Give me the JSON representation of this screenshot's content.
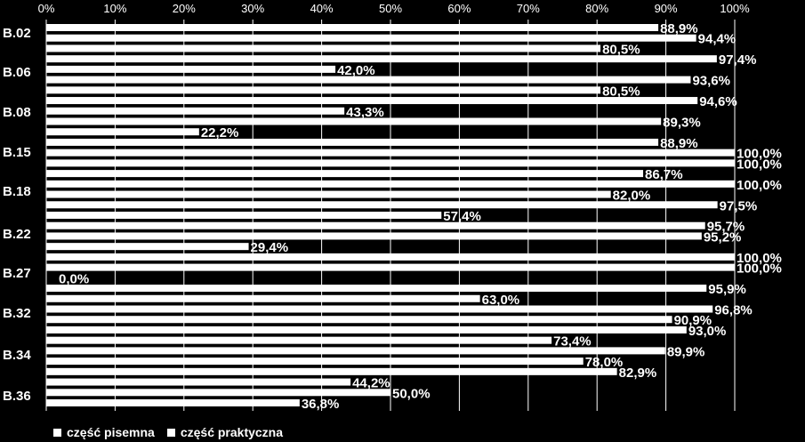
{
  "chart_data": {
    "type": "bar",
    "orientation": "horizontal",
    "x_ticks": [
      "0%",
      "10%",
      "20%",
      "30%",
      "40%",
      "50%",
      "60%",
      "70%",
      "80%",
      "90%",
      "100%"
    ],
    "xlim": [
      0,
      100
    ],
    "grid": true,
    "legend_position": "bottom-left",
    "category_labels": [
      "B.02",
      "B.06",
      "B.08",
      "B.15",
      "B.18",
      "B.22",
      "B.27",
      "B.32",
      "B.34",
      "B.36"
    ],
    "bars": [
      {
        "value": 88.9,
        "label": "88,9%"
      },
      {
        "value": 94.4,
        "label": "94,4%"
      },
      {
        "value": 80.5,
        "label": "80,5%"
      },
      {
        "value": 97.4,
        "label": "97,4%"
      },
      {
        "value": 42.0,
        "label": "42,0%"
      },
      {
        "value": 93.6,
        "label": "93,6%"
      },
      {
        "value": 80.5,
        "label": "80,5%"
      },
      {
        "value": 94.6,
        "label": "94,6%"
      },
      {
        "value": 43.3,
        "label": "43,3%"
      },
      {
        "value": 89.3,
        "label": "89,3%"
      },
      {
        "value": 22.2,
        "label": "22,2%"
      },
      {
        "value": 88.9,
        "label": "88,9%"
      },
      {
        "value": 100.0,
        "label": "100,0%"
      },
      {
        "value": 100.0,
        "label": "100,0%"
      },
      {
        "value": 86.7,
        "label": "86,7%"
      },
      {
        "value": 100.0,
        "label": "100,0%"
      },
      {
        "value": 82.0,
        "label": "82,0%"
      },
      {
        "value": 97.5,
        "label": "97,5%"
      },
      {
        "value": 57.4,
        "label": "57,4%"
      },
      {
        "value": 95.7,
        "label": "95,7%"
      },
      {
        "value": 95.2,
        "label": "95,2%"
      },
      {
        "value": 29.4,
        "label": "29,4%"
      },
      {
        "value": 100.0,
        "label": "100,0%"
      },
      {
        "value": 100.0,
        "label": "100,0%"
      },
      {
        "value": 0.0,
        "label": "0,0%"
      },
      {
        "value": 95.9,
        "label": "95,9%"
      },
      {
        "value": 63.0,
        "label": "63,0%"
      },
      {
        "value": 96.8,
        "label": "96,8%"
      },
      {
        "value": 90.9,
        "label": "90,9%"
      },
      {
        "value": 93.0,
        "label": "93,0%"
      },
      {
        "value": 73.4,
        "label": "73,4%"
      },
      {
        "value": 89.9,
        "label": "89,9%"
      },
      {
        "value": 78.0,
        "label": "78,0%"
      },
      {
        "value": 82.9,
        "label": "82,9%"
      },
      {
        "value": 44.2,
        "label": "44,2%"
      },
      {
        "value": 50.0,
        "label": "50,0%"
      },
      {
        "value": 36.8,
        "label": "36,8%"
      }
    ],
    "legend": [
      "część pisemna",
      "część praktyczna"
    ]
  }
}
